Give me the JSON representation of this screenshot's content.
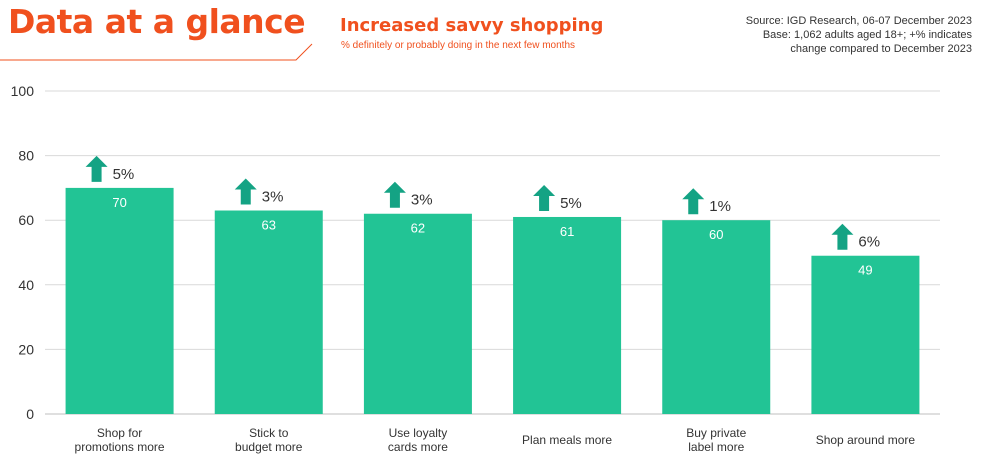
{
  "header": {
    "title": "Data at a glance",
    "subtitle": "Increased savvy shopping",
    "note": "% definitely or probably doing in the next few months",
    "source_lines": [
      "Source: IGD Research, 06-07 December 2023",
      "Base: 1,062 adults aged 18+; +% indicates",
      "change compared to December 2023"
    ]
  },
  "colors": {
    "accent": "#f0501e",
    "bar": "#22c495",
    "arrow": "#14a384",
    "grid": "#d9d9d9",
    "text": "#333333"
  },
  "chart_data": {
    "type": "bar",
    "title": "Increased savvy shopping",
    "ylabel": "% definitely or probably doing in the next few months",
    "xlabel": "",
    "ylim": [
      0,
      100
    ],
    "yticks": [
      0,
      20,
      40,
      60,
      80,
      100
    ],
    "grid": true,
    "categories": [
      [
        "Shop for",
        "promotions more"
      ],
      [
        "Stick to",
        "budget more"
      ],
      [
        "Use loyalty",
        "cards more"
      ],
      [
        "Plan meals more"
      ],
      [
        "Buy private",
        "label more"
      ],
      [
        "Shop around more"
      ]
    ],
    "values": [
      70,
      63,
      62,
      61,
      60,
      49
    ],
    "changes": [
      "5%",
      "3%",
      "3%",
      "5%",
      "1%",
      "6%"
    ]
  }
}
